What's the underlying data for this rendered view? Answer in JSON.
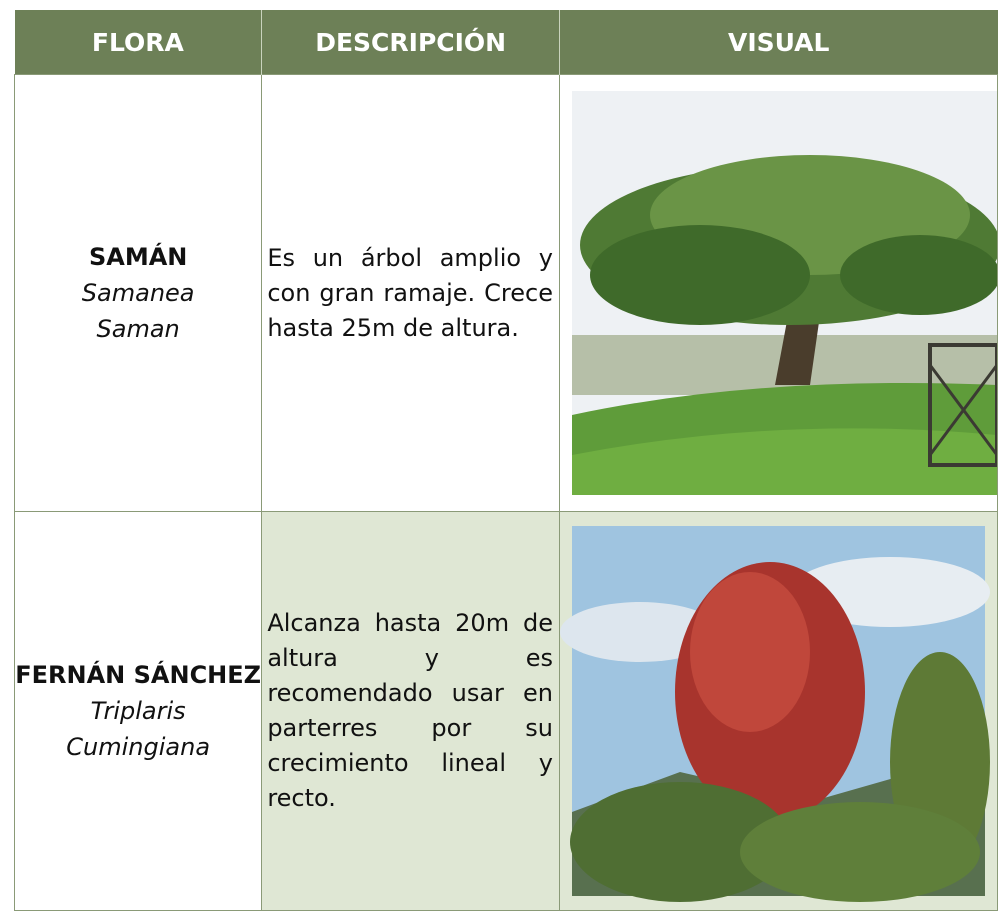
{
  "table": {
    "header": [
      "FLORA",
      "DESCRIPCIÓN",
      "VISUAL"
    ],
    "rows": [
      {
        "name": "SAMÁN",
        "scientific": "Samanea Saman",
        "description": "Es un árbol amplio y con gran ramaje. Crece hasta 25m de altura."
      },
      {
        "name": "FERNÁN SÁNCHEZ",
        "scientific": "Triplaris Cumingiana",
        "description": "Alcanza hasta 20m de altura y es recomendado usar en parterres por su crecimiento lineal y recto."
      }
    ]
  }
}
